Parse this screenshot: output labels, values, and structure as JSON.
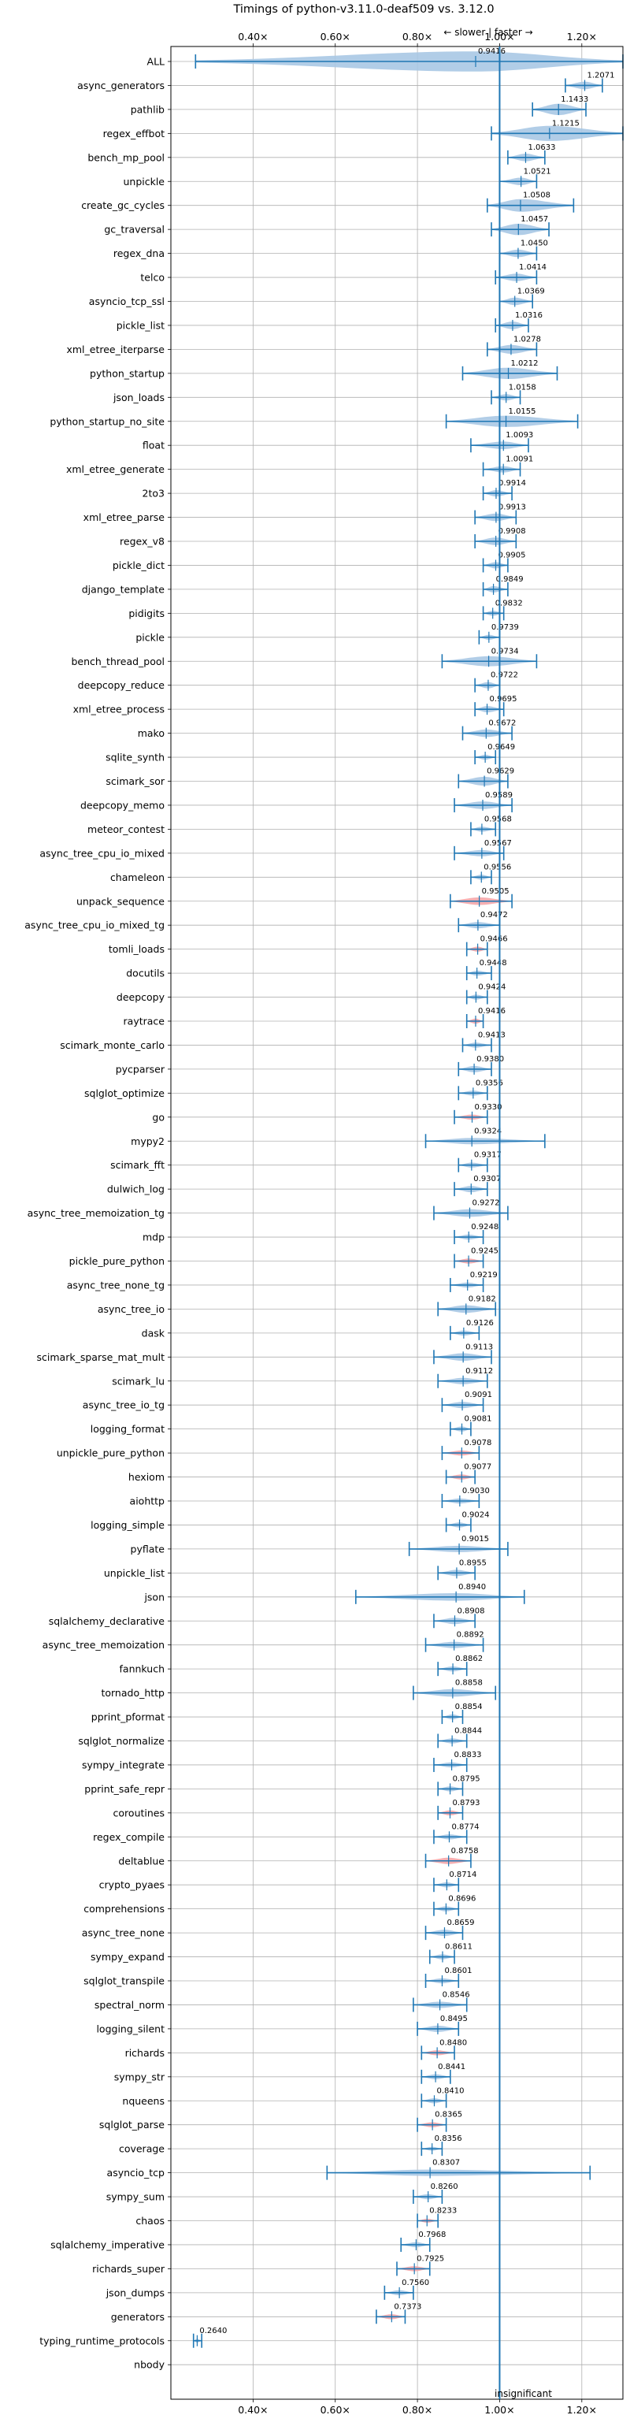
{
  "chart_data": {
    "type": "violin",
    "title": "Timings of python-v3.11.0-deaf509 vs. 3.12.0",
    "direction_label": "← slower | faster →",
    "xlim": [
      0.2,
      1.3
    ],
    "xticks": [
      {
        "value": 0.4,
        "label": "0.40×"
      },
      {
        "value": 0.6,
        "label": "0.60×"
      },
      {
        "value": 0.8,
        "label": "0.80×"
      },
      {
        "value": 1.0,
        "label": "1.00×"
      },
      {
        "value": 1.2,
        "label": "1.20×"
      }
    ],
    "reference_line": 1.0,
    "colors": {
      "faster": "#a9c8e4",
      "slower": "#f4a6aa",
      "whisker": "#1f77b4",
      "grid": "#b0b0b0"
    },
    "footer_note": "insignificant",
    "benchmarks": [
      {
        "name": "ALL",
        "value": 0.9416,
        "min": 0.26,
        "max": 1.3,
        "width": 0.16,
        "slower": false
      },
      {
        "name": "async_generators",
        "value": 1.2071,
        "min": 1.16,
        "max": 1.25,
        "width": 0.06,
        "slower": false
      },
      {
        "name": "pathlib",
        "value": 1.1433,
        "min": 1.08,
        "max": 1.21,
        "width": 0.09,
        "slower": false
      },
      {
        "name": "regex_effbot",
        "value": 1.1215,
        "min": 0.98,
        "max": 1.3,
        "width": 0.12,
        "slower": false
      },
      {
        "name": "bench_mp_pool",
        "value": 1.0633,
        "min": 1.02,
        "max": 1.11,
        "width": 0.06,
        "slower": false
      },
      {
        "name": "unpickle",
        "value": 1.0521,
        "min": 1.0,
        "max": 1.09,
        "width": 0.06,
        "slower": false
      },
      {
        "name": "create_gc_cycles",
        "value": 1.0508,
        "min": 0.97,
        "max": 1.18,
        "width": 0.1,
        "slower": false
      },
      {
        "name": "gc_traversal",
        "value": 1.0457,
        "min": 0.98,
        "max": 1.12,
        "width": 0.09,
        "slower": false
      },
      {
        "name": "regex_dna",
        "value": 1.045,
        "min": 1.0,
        "max": 1.09,
        "width": 0.06,
        "slower": false
      },
      {
        "name": "telco",
        "value": 1.0414,
        "min": 0.99,
        "max": 1.09,
        "width": 0.06,
        "slower": false
      },
      {
        "name": "asyncio_tcp_ssl",
        "value": 1.0369,
        "min": 1.0,
        "max": 1.08,
        "width": 0.06,
        "slower": false
      },
      {
        "name": "pickle_list",
        "value": 1.0316,
        "min": 0.99,
        "max": 1.07,
        "width": 0.06,
        "slower": false
      },
      {
        "name": "xml_etree_iterparse",
        "value": 1.0278,
        "min": 0.97,
        "max": 1.09,
        "width": 0.07,
        "slower": false
      },
      {
        "name": "python_startup",
        "value": 1.0212,
        "min": 0.91,
        "max": 1.14,
        "width": 0.09,
        "slower": false
      },
      {
        "name": "json_loads",
        "value": 1.0158,
        "min": 0.98,
        "max": 1.05,
        "width": 0.05,
        "slower": false
      },
      {
        "name": "python_startup_no_site",
        "value": 1.0155,
        "min": 0.87,
        "max": 1.19,
        "width": 0.09,
        "slower": false
      },
      {
        "name": "float",
        "value": 1.0093,
        "min": 0.93,
        "max": 1.07,
        "width": 0.06,
        "slower": false
      },
      {
        "name": "xml_etree_generate",
        "value": 1.0091,
        "min": 0.96,
        "max": 1.05,
        "width": 0.05,
        "slower": false
      },
      {
        "name": "2to3",
        "value": 0.9914,
        "min": 0.96,
        "max": 1.03,
        "width": 0.05,
        "slower": false
      },
      {
        "name": "xml_etree_parse",
        "value": 0.9913,
        "min": 0.94,
        "max": 1.04,
        "width": 0.06,
        "slower": false
      },
      {
        "name": "regex_v8",
        "value": 0.9908,
        "min": 0.94,
        "max": 1.04,
        "width": 0.06,
        "slower": false
      },
      {
        "name": "pickle_dict",
        "value": 0.9905,
        "min": 0.96,
        "max": 1.02,
        "width": 0.05,
        "slower": false
      },
      {
        "name": "django_template",
        "value": 0.9849,
        "min": 0.96,
        "max": 1.02,
        "width": 0.05,
        "slower": false
      },
      {
        "name": "pidigits",
        "value": 0.9832,
        "min": 0.96,
        "max": 1.01,
        "width": 0.04,
        "slower": false
      },
      {
        "name": "pickle",
        "value": 0.9739,
        "min": 0.95,
        "max": 1.0,
        "width": 0.04,
        "slower": false
      },
      {
        "name": "bench_thread_pool",
        "value": 0.9734,
        "min": 0.86,
        "max": 1.09,
        "width": 0.08,
        "slower": false
      },
      {
        "name": "deepcopy_reduce",
        "value": 0.9722,
        "min": 0.94,
        "max": 1.0,
        "width": 0.05,
        "slower": false
      },
      {
        "name": "xml_etree_process",
        "value": 0.9695,
        "min": 0.94,
        "max": 1.01,
        "width": 0.05,
        "slower": false
      },
      {
        "name": "mako",
        "value": 0.9672,
        "min": 0.91,
        "max": 1.03,
        "width": 0.06,
        "slower": false
      },
      {
        "name": "sqlite_synth",
        "value": 0.9649,
        "min": 0.94,
        "max": 0.99,
        "width": 0.04,
        "slower": false
      },
      {
        "name": "scimark_sor",
        "value": 0.9629,
        "min": 0.9,
        "max": 1.02,
        "width": 0.07,
        "slower": false
      },
      {
        "name": "deepcopy_memo",
        "value": 0.9589,
        "min": 0.89,
        "max": 1.03,
        "width": 0.06,
        "slower": false
      },
      {
        "name": "meteor_contest",
        "value": 0.9568,
        "min": 0.93,
        "max": 0.99,
        "width": 0.04,
        "slower": false
      },
      {
        "name": "async_tree_cpu_io_mixed",
        "value": 0.9567,
        "min": 0.89,
        "max": 1.01,
        "width": 0.05,
        "slower": false
      },
      {
        "name": "chameleon",
        "value": 0.9556,
        "min": 0.93,
        "max": 0.98,
        "width": 0.04,
        "slower": false
      },
      {
        "name": "unpack_sequence",
        "value": 0.9505,
        "min": 0.88,
        "max": 1.03,
        "width": 0.06,
        "slower": true
      },
      {
        "name": "async_tree_cpu_io_mixed_tg",
        "value": 0.9472,
        "min": 0.9,
        "max": 1.0,
        "width": 0.05,
        "slower": false
      },
      {
        "name": "tomli_loads",
        "value": 0.9466,
        "min": 0.92,
        "max": 0.97,
        "width": 0.04,
        "slower": true
      },
      {
        "name": "docutils",
        "value": 0.9448,
        "min": 0.92,
        "max": 0.98,
        "width": 0.04,
        "slower": false
      },
      {
        "name": "deepcopy",
        "value": 0.9424,
        "min": 0.92,
        "max": 0.97,
        "width": 0.04,
        "slower": false
      },
      {
        "name": "raytrace",
        "value": 0.9416,
        "min": 0.92,
        "max": 0.96,
        "width": 0.04,
        "slower": true
      },
      {
        "name": "scimark_monte_carlo",
        "value": 0.9413,
        "min": 0.91,
        "max": 0.98,
        "width": 0.04,
        "slower": false
      },
      {
        "name": "pycparser",
        "value": 0.938,
        "min": 0.9,
        "max": 0.98,
        "width": 0.05,
        "slower": false
      },
      {
        "name": "sqlglot_optimize",
        "value": 0.9356,
        "min": 0.9,
        "max": 0.97,
        "width": 0.04,
        "slower": false
      },
      {
        "name": "go",
        "value": 0.933,
        "min": 0.89,
        "max": 0.97,
        "width": 0.04,
        "slower": true
      },
      {
        "name": "mypy2",
        "value": 0.9324,
        "min": 0.82,
        "max": 1.11,
        "width": 0.05,
        "slower": false
      },
      {
        "name": "scimark_fft",
        "value": 0.9317,
        "min": 0.9,
        "max": 0.97,
        "width": 0.04,
        "slower": false
      },
      {
        "name": "dulwich_log",
        "value": 0.9307,
        "min": 0.89,
        "max": 0.97,
        "width": 0.05,
        "slower": false
      },
      {
        "name": "async_tree_memoization_tg",
        "value": 0.9272,
        "min": 0.84,
        "max": 1.02,
        "width": 0.06,
        "slower": false
      },
      {
        "name": "mdp",
        "value": 0.9248,
        "min": 0.89,
        "max": 0.96,
        "width": 0.04,
        "slower": false
      },
      {
        "name": "pickle_pure_python",
        "value": 0.9245,
        "min": 0.89,
        "max": 0.96,
        "width": 0.04,
        "slower": true
      },
      {
        "name": "async_tree_none_tg",
        "value": 0.9219,
        "min": 0.88,
        "max": 0.96,
        "width": 0.04,
        "slower": false
      },
      {
        "name": "async_tree_io",
        "value": 0.9182,
        "min": 0.85,
        "max": 0.99,
        "width": 0.06,
        "slower": false
      },
      {
        "name": "dask",
        "value": 0.9126,
        "min": 0.88,
        "max": 0.95,
        "width": 0.04,
        "slower": false
      },
      {
        "name": "scimark_sparse_mat_mult",
        "value": 0.9113,
        "min": 0.84,
        "max": 0.98,
        "width": 0.06,
        "slower": false
      },
      {
        "name": "scimark_lu",
        "value": 0.9112,
        "min": 0.85,
        "max": 0.97,
        "width": 0.05,
        "slower": false
      },
      {
        "name": "async_tree_io_tg",
        "value": 0.9091,
        "min": 0.86,
        "max": 0.96,
        "width": 0.05,
        "slower": false
      },
      {
        "name": "logging_format",
        "value": 0.9081,
        "min": 0.88,
        "max": 0.93,
        "width": 0.04,
        "slower": false
      },
      {
        "name": "unpickle_pure_python",
        "value": 0.9078,
        "min": 0.86,
        "max": 0.95,
        "width": 0.04,
        "slower": true
      },
      {
        "name": "hexiom",
        "value": 0.9077,
        "min": 0.87,
        "max": 0.94,
        "width": 0.04,
        "slower": true
      },
      {
        "name": "aiohttp",
        "value": 0.903,
        "min": 0.86,
        "max": 0.95,
        "width": 0.04,
        "slower": false
      },
      {
        "name": "logging_simple",
        "value": 0.9024,
        "min": 0.87,
        "max": 0.93,
        "width": 0.04,
        "slower": false
      },
      {
        "name": "pyflate",
        "value": 0.9015,
        "min": 0.78,
        "max": 1.02,
        "width": 0.05,
        "slower": false
      },
      {
        "name": "unpickle_list",
        "value": 0.8955,
        "min": 0.85,
        "max": 0.94,
        "width": 0.05,
        "slower": false
      },
      {
        "name": "json",
        "value": 0.894,
        "min": 0.65,
        "max": 1.06,
        "width": 0.06,
        "slower": false
      },
      {
        "name": "sqlalchemy_declarative",
        "value": 0.8908,
        "min": 0.84,
        "max": 0.94,
        "width": 0.05,
        "slower": false
      },
      {
        "name": "async_tree_memoization",
        "value": 0.8892,
        "min": 0.82,
        "max": 0.96,
        "width": 0.05,
        "slower": false
      },
      {
        "name": "fannkuch",
        "value": 0.8862,
        "min": 0.85,
        "max": 0.92,
        "width": 0.04,
        "slower": false
      },
      {
        "name": "tornado_http",
        "value": 0.8858,
        "min": 0.79,
        "max": 0.99,
        "width": 0.06,
        "slower": false
      },
      {
        "name": "pprint_pformat",
        "value": 0.8854,
        "min": 0.86,
        "max": 0.91,
        "width": 0.04,
        "slower": false
      },
      {
        "name": "sqlglot_normalize",
        "value": 0.8844,
        "min": 0.85,
        "max": 0.92,
        "width": 0.04,
        "slower": false
      },
      {
        "name": "sympy_integrate",
        "value": 0.8833,
        "min": 0.84,
        "max": 0.92,
        "width": 0.04,
        "slower": false
      },
      {
        "name": "pprint_safe_repr",
        "value": 0.8795,
        "min": 0.85,
        "max": 0.91,
        "width": 0.04,
        "slower": false
      },
      {
        "name": "coroutines",
        "value": 0.8793,
        "min": 0.85,
        "max": 0.91,
        "width": 0.04,
        "slower": true
      },
      {
        "name": "regex_compile",
        "value": 0.8774,
        "min": 0.84,
        "max": 0.92,
        "width": 0.04,
        "slower": false
      },
      {
        "name": "deltablue",
        "value": 0.8758,
        "min": 0.82,
        "max": 0.93,
        "width": 0.05,
        "slower": true
      },
      {
        "name": "crypto_pyaes",
        "value": 0.8714,
        "min": 0.84,
        "max": 0.9,
        "width": 0.04,
        "slower": false
      },
      {
        "name": "comprehensions",
        "value": 0.8696,
        "min": 0.84,
        "max": 0.9,
        "width": 0.04,
        "slower": false
      },
      {
        "name": "async_tree_none",
        "value": 0.8659,
        "min": 0.82,
        "max": 0.91,
        "width": 0.05,
        "slower": false
      },
      {
        "name": "sympy_expand",
        "value": 0.8611,
        "min": 0.83,
        "max": 0.89,
        "width": 0.04,
        "slower": false
      },
      {
        "name": "sqlglot_transpile",
        "value": 0.8601,
        "min": 0.82,
        "max": 0.9,
        "width": 0.04,
        "slower": false
      },
      {
        "name": "spectral_norm",
        "value": 0.8546,
        "min": 0.79,
        "max": 0.92,
        "width": 0.05,
        "slower": false
      },
      {
        "name": "logging_silent",
        "value": 0.8495,
        "min": 0.8,
        "max": 0.9,
        "width": 0.05,
        "slower": false
      },
      {
        "name": "richards",
        "value": 0.848,
        "min": 0.81,
        "max": 0.89,
        "width": 0.04,
        "slower": true
      },
      {
        "name": "sympy_str",
        "value": 0.8441,
        "min": 0.81,
        "max": 0.88,
        "width": 0.04,
        "slower": false
      },
      {
        "name": "nqueens",
        "value": 0.841,
        "min": 0.81,
        "max": 0.87,
        "width": 0.04,
        "slower": false
      },
      {
        "name": "sqlglot_parse",
        "value": 0.8365,
        "min": 0.8,
        "max": 0.87,
        "width": 0.04,
        "slower": true
      },
      {
        "name": "coverage",
        "value": 0.8356,
        "min": 0.81,
        "max": 0.86,
        "width": 0.03,
        "slower": false
      },
      {
        "name": "asyncio_tcp",
        "value": 0.8307,
        "min": 0.58,
        "max": 1.22,
        "width": 0.05,
        "slower": false
      },
      {
        "name": "sympy_sum",
        "value": 0.826,
        "min": 0.79,
        "max": 0.86,
        "width": 0.04,
        "slower": false
      },
      {
        "name": "chaos",
        "value": 0.8233,
        "min": 0.8,
        "max": 0.85,
        "width": 0.03,
        "slower": true
      },
      {
        "name": "sqlalchemy_imperative",
        "value": 0.7968,
        "min": 0.76,
        "max": 0.83,
        "width": 0.04,
        "slower": false
      },
      {
        "name": "richards_super",
        "value": 0.7925,
        "min": 0.75,
        "max": 0.83,
        "width": 0.04,
        "slower": true
      },
      {
        "name": "json_dumps",
        "value": 0.756,
        "min": 0.72,
        "max": 0.79,
        "width": 0.04,
        "slower": false
      },
      {
        "name": "generators",
        "value": 0.7373,
        "min": 0.7,
        "max": 0.77,
        "width": 0.04,
        "slower": true
      },
      {
        "name": "typing_runtime_protocols",
        "value": 0.264,
        "min": 0.255,
        "max": 0.275,
        "width": 0.02,
        "slower": false
      },
      {
        "name": "nbody",
        "value": null,
        "min": null,
        "max": null,
        "width": 0,
        "slower": false
      }
    ]
  }
}
